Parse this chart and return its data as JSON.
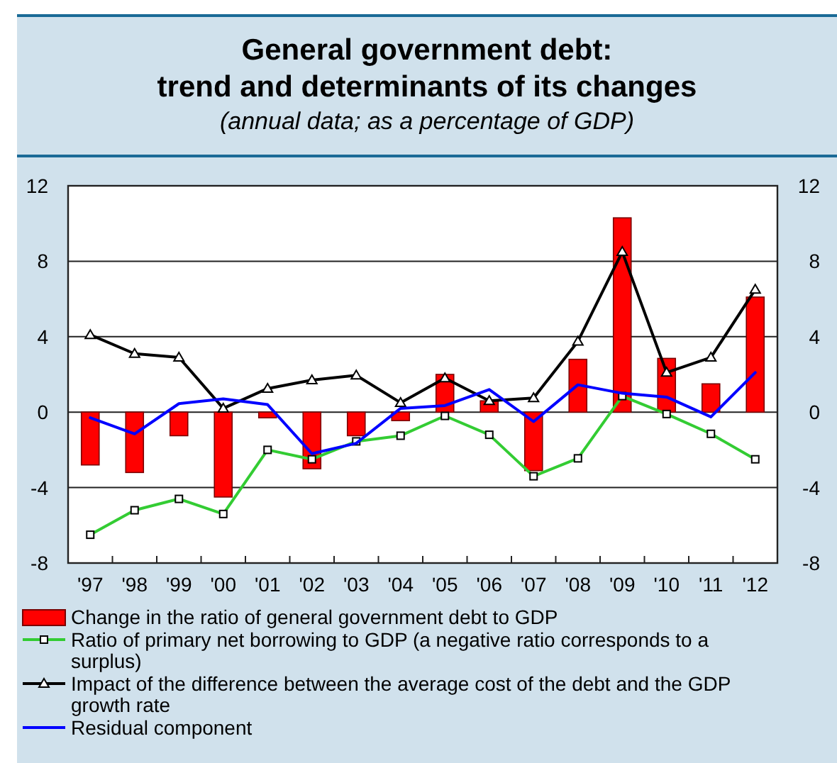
{
  "chart_data": {
    "type": "bar",
    "title": "General government debt:\ntrend and determinants of its changes",
    "subtitle": "(annual data; as a percentage of GDP)",
    "categories": [
      "'97",
      "'98",
      "'99",
      "'00",
      "'01",
      "'02",
      "'03",
      "'04",
      "'05",
      "'06",
      "'07",
      "'08",
      "'09",
      "'10",
      "'11",
      "'12"
    ],
    "series": [
      {
        "name": "Change in the ratio of general government debt to GDP",
        "color": "#ff0000",
        "values": [
          -2.8,
          -3.2,
          -1.25,
          -4.5,
          -0.3,
          -3.0,
          -1.25,
          -0.45,
          2.0,
          0.6,
          -3.1,
          2.8,
          10.3,
          2.85,
          1.5,
          6.1
        ]
      },
      {
        "name": "Ratio of primary net borrowing to GDP (a negative ratio corresponds to a surplus)",
        "type": "line",
        "color": "#33cc33",
        "marker": "square",
        "values": [
          -6.5,
          -5.2,
          -4.6,
          -5.4,
          -2.0,
          -2.5,
          -1.55,
          -1.25,
          -0.2,
          -1.2,
          -3.4,
          -2.45,
          0.85,
          -0.1,
          -1.15,
          -2.5
        ]
      },
      {
        "name": "Impact of the difference between the average cost of the debt and the GDP growth rate",
        "type": "line",
        "color": "#000000",
        "marker": "triangle",
        "values": [
          4.1,
          3.1,
          2.9,
          0.2,
          1.25,
          1.7,
          1.95,
          0.5,
          1.8,
          0.6,
          0.75,
          3.75,
          8.5,
          2.1,
          2.9,
          6.5
        ]
      },
      {
        "name": "Residual component",
        "type": "line",
        "color": "#0000ff",
        "marker": "none",
        "values": [
          -0.3,
          -1.15,
          0.45,
          0.7,
          0.4,
          -2.2,
          -1.65,
          0.2,
          0.35,
          1.2,
          -0.5,
          1.45,
          1.0,
          0.8,
          -0.25,
          2.1
        ]
      }
    ],
    "ylim": [
      -8,
      12
    ],
    "yticks": [
      -8,
      -4,
      0,
      4,
      8,
      12
    ],
    "y2lim": [
      -8,
      12
    ],
    "y2ticks": [
      -8,
      -4,
      0,
      4,
      8,
      12
    ],
    "grid": "y",
    "legend": "bottom"
  }
}
